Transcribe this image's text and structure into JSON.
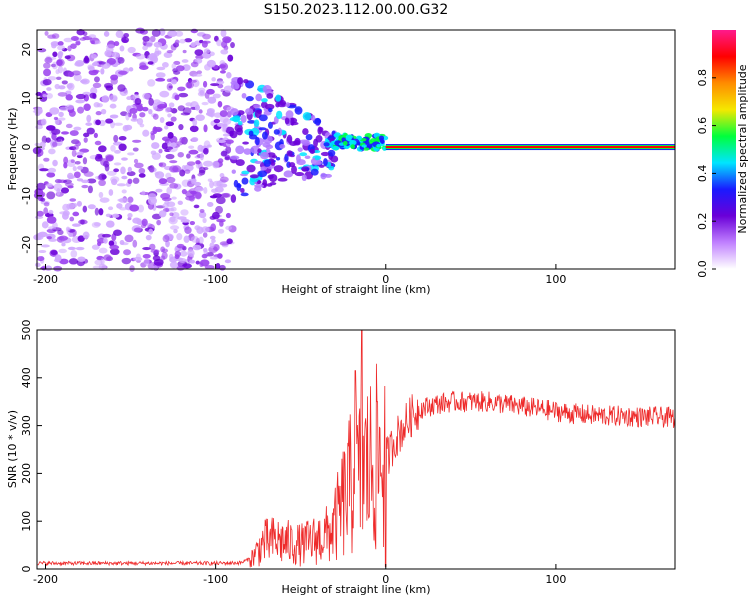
{
  "chart_data": [
    {
      "type": "heatmap",
      "title": "S150.2023.112.00.00.G32",
      "xlabel": "Height of straight line (km)",
      "ylabel": "Frequency (Hz)",
      "xlim": [
        -205,
        170
      ],
      "ylim": [
        -25,
        24
      ],
      "xticks": [
        -200,
        -100,
        0,
        100
      ],
      "yticks": [
        20,
        10,
        0,
        -10,
        -20
      ],
      "colorbar": {
        "label": "Normalized spectral amplitude",
        "range": [
          0,
          1
        ],
        "ticks": [
          "0.0",
          "0.2",
          "0.4",
          "0.6",
          "0.8"
        ],
        "colors": [
          "#ffffff",
          "#c080ff",
          "#6a00d8",
          "#1a1aff",
          "#00e5ff",
          "#00ff3c",
          "#f5e800",
          "#ff8c00",
          "#ff0000",
          "#ff1a8c"
        ]
      },
      "regions": [
        {
          "name": "noise",
          "x_range": [
            -205,
            -90
          ],
          "freq_range": [
            -25,
            24
          ],
          "amplitude": 0.1
        },
        {
          "name": "transition",
          "x_range": [
            -90,
            -30
          ],
          "freq_range": [
            -12,
            15
          ],
          "amplitude": 0.3
        },
        {
          "name": "signal",
          "x_range": [
            -30,
            0
          ],
          "freq_range": [
            -2,
            4
          ],
          "amplitude": 0.5
        },
        {
          "name": "tone",
          "x_range": [
            0,
            170
          ],
          "freq": 0,
          "amplitude": 0.95
        }
      ]
    },
    {
      "type": "line",
      "title": "",
      "xlabel": "Height of straight line (km)",
      "ylabel": "SNR (10 * v/v)",
      "xlim": [
        -205,
        170
      ],
      "ylim": [
        0,
        500
      ],
      "xticks": [
        -200,
        -100,
        0,
        100
      ],
      "yticks": [
        500,
        400,
        300,
        200,
        100,
        0
      ],
      "color": "#ee2a2a",
      "series": [
        {
          "x": [
            -205,
            -180,
            -160,
            -140,
            -120,
            -100,
            -85,
            -78,
            -72,
            -65,
            -58,
            -50,
            -42,
            -35,
            -30,
            -25,
            -20,
            -18,
            -15,
            -12,
            -8,
            -4,
            0,
            2,
            5,
            10,
            15,
            20,
            30,
            40,
            50,
            60,
            70,
            80,
            90,
            100,
            110,
            120,
            130,
            140,
            150,
            160,
            170
          ],
          "y": [
            12,
            12,
            12,
            12,
            12,
            12,
            13,
            25,
            55,
            60,
            55,
            50,
            60,
            70,
            90,
            140,
            180,
            200,
            190,
            210,
            220,
            230,
            230,
            240,
            270,
            295,
            320,
            335,
            345,
            350,
            350,
            350,
            345,
            340,
            335,
            330,
            325,
            322,
            320,
            320,
            318,
            318,
            316
          ]
        }
      ],
      "spikes": [
        {
          "x": -18,
          "y": 415
        },
        {
          "x": -14,
          "y": 500
        },
        {
          "x": -5,
          "y": 350
        },
        {
          "x": 0,
          "y": 5
        }
      ]
    }
  ]
}
